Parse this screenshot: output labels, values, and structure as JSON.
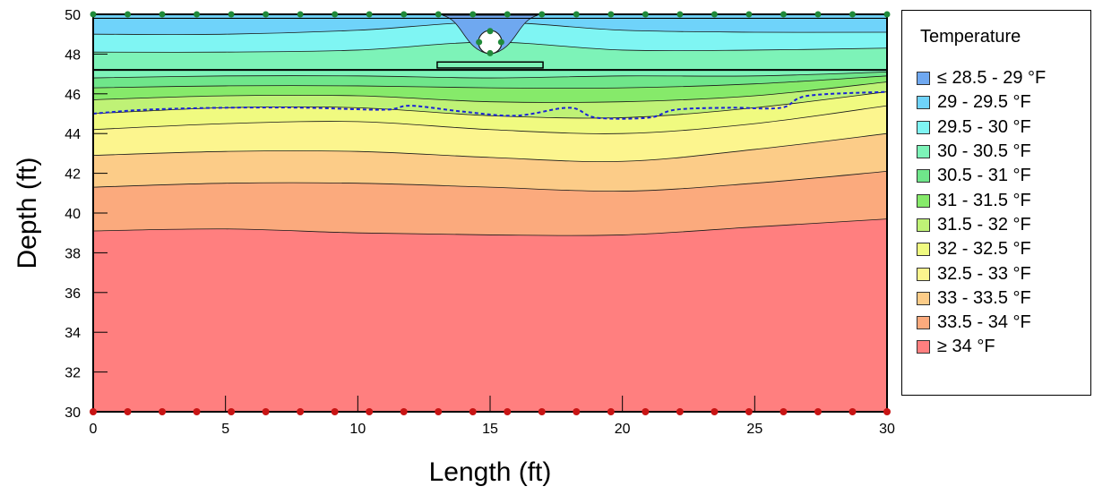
{
  "chart_data": {
    "type": "contour",
    "xlabel": "Length (ft)",
    "ylabel": "Depth (ft)",
    "xlim": [
      0,
      30
    ],
    "ylim": [
      30,
      50
    ],
    "xticks": [
      0,
      5,
      10,
      15,
      20,
      25,
      30
    ],
    "yticks": [
      30,
      32,
      34,
      36,
      38,
      40,
      42,
      44,
      46,
      48,
      50
    ],
    "legend": {
      "title": "Temperature",
      "position": "right",
      "entries": [
        {
          "label": "≤ 28.5 - 29 °F",
          "color": "#6fa8f0"
        },
        {
          "label": "29 - 29.5 °F",
          "color": "#6fd3fa"
        },
        {
          "label": "29.5 - 30 °F",
          "color": "#7ff5f3"
        },
        {
          "label": "30 - 30.5 °F",
          "color": "#7df3b8"
        },
        {
          "label": "30.5 - 31 °F",
          "color": "#6fe68a"
        },
        {
          "label": "31 - 31.5 °F",
          "color": "#86ea6a"
        },
        {
          "label": "31.5 - 32 °F",
          "color": "#bff276"
        },
        {
          "label": "32 - 32.5 °F",
          "color": "#f0fa80"
        },
        {
          "label": "32.5 - 33 °F",
          "color": "#fcf58e"
        },
        {
          "label": "33 - 33.5 °F",
          "color": "#fccc88"
        },
        {
          "label": "33.5 - 34 °F",
          "color": "#fbaa7d"
        },
        {
          "label": "≥ 34 °F",
          "color": "#ff7f7f"
        }
      ]
    },
    "band_boundaries_depth": [
      {
        "x": [
          0,
          5,
          10,
          15,
          20,
          25,
          30
        ],
        "y": [
          39.1,
          39.2,
          39.0,
          38.9,
          38.9,
          39.3,
          39.7
        ]
      },
      {
        "x": [
          0,
          5,
          10,
          15,
          20,
          25,
          30
        ],
        "y": [
          41.3,
          41.5,
          41.5,
          41.3,
          41.1,
          41.5,
          42.1
        ]
      },
      {
        "x": [
          0,
          5,
          10,
          15,
          20,
          25,
          30
        ],
        "y": [
          42.9,
          43.1,
          43.1,
          42.8,
          42.6,
          43.2,
          44.0
        ]
      },
      {
        "x": [
          0,
          5,
          10,
          15,
          20,
          25,
          30
        ],
        "y": [
          44.2,
          44.5,
          44.6,
          44.2,
          44.0,
          44.5,
          45.4
        ]
      },
      {
        "x": [
          0,
          5,
          10,
          15,
          20,
          25,
          30
        ],
        "y": [
          45.0,
          45.3,
          45.3,
          44.9,
          44.8,
          45.3,
          46.1
        ]
      },
      {
        "x": [
          0,
          5,
          10,
          15,
          20,
          25,
          30
        ],
        "y": [
          45.7,
          45.9,
          45.9,
          45.6,
          45.6,
          45.9,
          46.6
        ]
      },
      {
        "x": [
          0,
          5,
          10,
          15,
          20,
          25,
          30
        ],
        "y": [
          46.3,
          46.4,
          46.4,
          46.3,
          46.3,
          46.5,
          46.9
        ]
      },
      {
        "x": [
          0,
          5,
          10,
          15,
          20,
          25,
          30
        ],
        "y": [
          46.8,
          46.9,
          46.9,
          46.8,
          46.9,
          46.9,
          47.1
        ]
      },
      {
        "x": [
          0,
          5,
          10,
          15,
          20,
          25,
          30
        ],
        "y": [
          48.1,
          48.1,
          48.2,
          48.6,
          48.2,
          48.2,
          48.3
        ]
      },
      {
        "x": [
          0,
          5,
          10,
          15,
          20,
          25,
          30
        ],
        "y": [
          49.0,
          49.0,
          49.2,
          49.6,
          49.2,
          49.1,
          49.1
        ]
      }
    ],
    "freezing_line": {
      "x": [
        0,
        2,
        5,
        8,
        11,
        12,
        14,
        16,
        18,
        19,
        21,
        22,
        24,
        26,
        27,
        30
      ],
      "y": [
        45.0,
        45.2,
        45.3,
        45.3,
        45.2,
        45.4,
        45.1,
        44.9,
        45.3,
        44.8,
        44.8,
        45.2,
        45.3,
        45.3,
        45.9,
        46.1
      ]
    },
    "layer_line_depth": 47.2,
    "pipe": {
      "x": 15,
      "y": 48.6
    },
    "slab": {
      "x": [
        13,
        17
      ],
      "y": [
        47.3,
        47.6
      ]
    },
    "top_nodes_count": 24,
    "bottom_nodes_count": 24
  }
}
